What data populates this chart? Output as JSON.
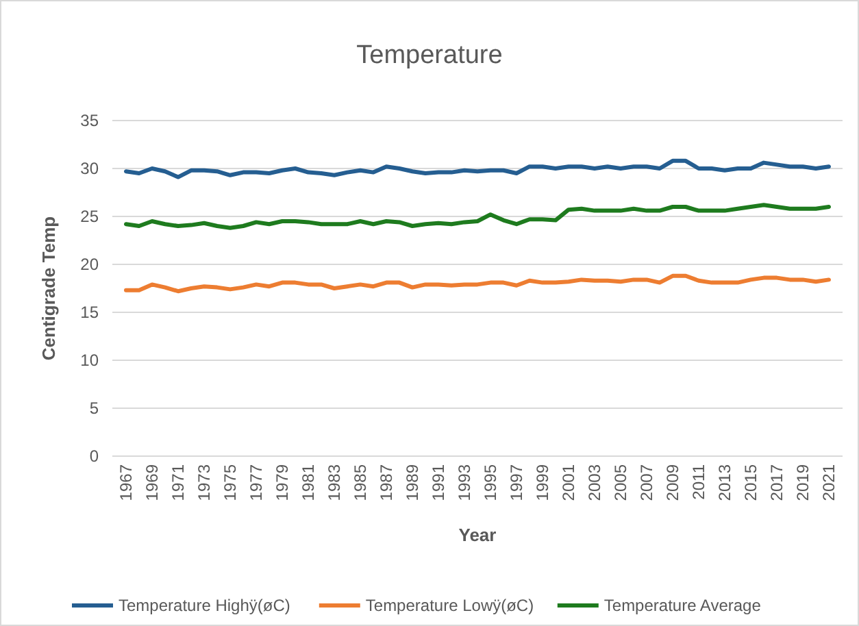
{
  "chart_data": {
    "type": "line",
    "title": "Temperature",
    "xlabel": "Year",
    "ylabel": "Centigrade Temp",
    "categories": [
      "1967",
      null,
      "1969",
      null,
      "1971",
      null,
      "1973",
      null,
      "1975",
      null,
      "1977",
      null,
      "1979",
      null,
      "1981",
      null,
      "1983",
      null,
      "1985",
      null,
      "1987",
      null,
      "1989",
      null,
      "1991",
      null,
      "1993",
      null,
      "1995",
      null,
      "1997",
      null,
      "1999",
      null,
      "2001",
      null,
      "2003",
      null,
      "2005",
      null,
      "2007",
      null,
      "2009",
      null,
      "2011",
      null,
      "2013",
      null,
      "2015",
      null,
      "2017",
      null,
      "2019",
      null,
      "2021"
    ],
    "series": [
      {
        "name": "Temperature Highÿ(øC)",
        "color": "#255e91",
        "values": [
          29.7,
          29.5,
          30.0,
          29.7,
          29.1,
          29.8,
          29.8,
          29.7,
          29.3,
          29.6,
          29.6,
          29.5,
          29.8,
          30.0,
          29.6,
          29.5,
          29.3,
          29.6,
          29.8,
          29.6,
          30.2,
          30.0,
          29.7,
          29.5,
          29.6,
          29.6,
          29.8,
          29.7,
          29.8,
          29.8,
          29.5,
          30.2,
          30.2,
          30.0,
          30.2,
          30.2,
          30.0,
          30.2,
          30.0,
          30.2,
          30.2,
          30.0,
          30.8,
          30.8,
          30.0,
          30.0,
          29.8,
          30.0,
          30.0,
          30.6,
          30.4,
          30.2,
          30.2,
          30.0,
          30.2
        ]
      },
      {
        "name": "Temperature Lowÿ(øC)",
        "color": "#ed7d31",
        "values": [
          17.3,
          17.3,
          17.9,
          17.6,
          17.2,
          17.5,
          17.7,
          17.6,
          17.4,
          17.6,
          17.9,
          17.7,
          18.1,
          18.1,
          17.9,
          17.9,
          17.5,
          17.7,
          17.9,
          17.7,
          18.1,
          18.1,
          17.6,
          17.9,
          17.9,
          17.8,
          17.9,
          17.9,
          18.1,
          18.1,
          17.8,
          18.3,
          18.1,
          18.1,
          18.2,
          18.4,
          18.3,
          18.3,
          18.2,
          18.4,
          18.4,
          18.1,
          18.8,
          18.8,
          18.3,
          18.1,
          18.1,
          18.1,
          18.4,
          18.6,
          18.6,
          18.4,
          18.4,
          18.2,
          18.4
        ]
      },
      {
        "name": "Temperature Average",
        "color": "#1e7b1e",
        "values": [
          24.2,
          24.0,
          24.5,
          24.2,
          24.0,
          24.1,
          24.3,
          24.0,
          23.8,
          24.0,
          24.4,
          24.2,
          24.5,
          24.5,
          24.4,
          24.2,
          24.2,
          24.2,
          24.5,
          24.2,
          24.5,
          24.4,
          24.0,
          24.2,
          24.3,
          24.2,
          24.4,
          24.5,
          25.2,
          24.6,
          24.2,
          24.7,
          24.7,
          24.6,
          25.7,
          25.8,
          25.6,
          25.6,
          25.6,
          25.8,
          25.6,
          25.6,
          26.0,
          26.0,
          25.6,
          25.6,
          25.6,
          25.8,
          26.0,
          26.2,
          26.0,
          25.8,
          25.8,
          25.8,
          26.0
        ]
      }
    ],
    "ylim": [
      0,
      35
    ],
    "yticks": [
      0,
      5,
      10,
      15,
      20,
      25,
      30,
      35
    ],
    "grid": "y",
    "legend": "bottom",
    "marker": "none",
    "line_style": "solid"
  }
}
